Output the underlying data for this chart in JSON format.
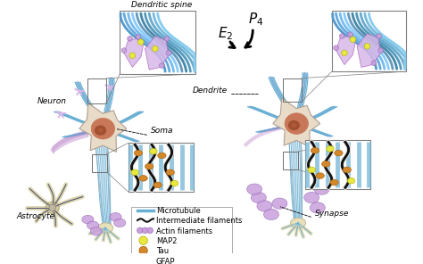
{
  "bg_color": "#ffffff",
  "labels": {
    "neuron": "Neuron",
    "soma": "Soma",
    "astrocyte": "Astrocyte",
    "dendritic_spine": "Dendritic spine",
    "dendrite": "Dendrite",
    "synapse": "Synapse"
  },
  "legend": {
    "microtubule": "Microtubule",
    "intermediate": "Intermediate filaments",
    "actin": "Actin filaments",
    "map2": "MAP2",
    "tau": "Tau",
    "gfap": "GFAP"
  },
  "colors": {
    "microtubule": "#6ab0d4",
    "intermediate_dark": "#1a1a1a",
    "intermediate_light": "#e8e0c8",
    "actin": "#c9a0dc",
    "map2": "#e8e840",
    "tau": "#d4882a",
    "gfap": "#1a1a6e",
    "soma_body": "#e8dcc8",
    "soma_nucleus_outer": "#c87858",
    "soma_nucleus_inner": "#a05030",
    "neuron_fill": "#e8dcc8",
    "neuron_edge": "#b0a090",
    "axon_terminal": "#e8e0b8",
    "astrocyte_fill": "#e8e0b8",
    "astrocyte_edge": "#c0b090",
    "spine_fill": "#d8b8e8",
    "purple_dendrite": "#b070c0",
    "border_color": "#909090"
  },
  "fontsize": {
    "label": 6.5,
    "legend": 6.0,
    "hormone": 10
  }
}
